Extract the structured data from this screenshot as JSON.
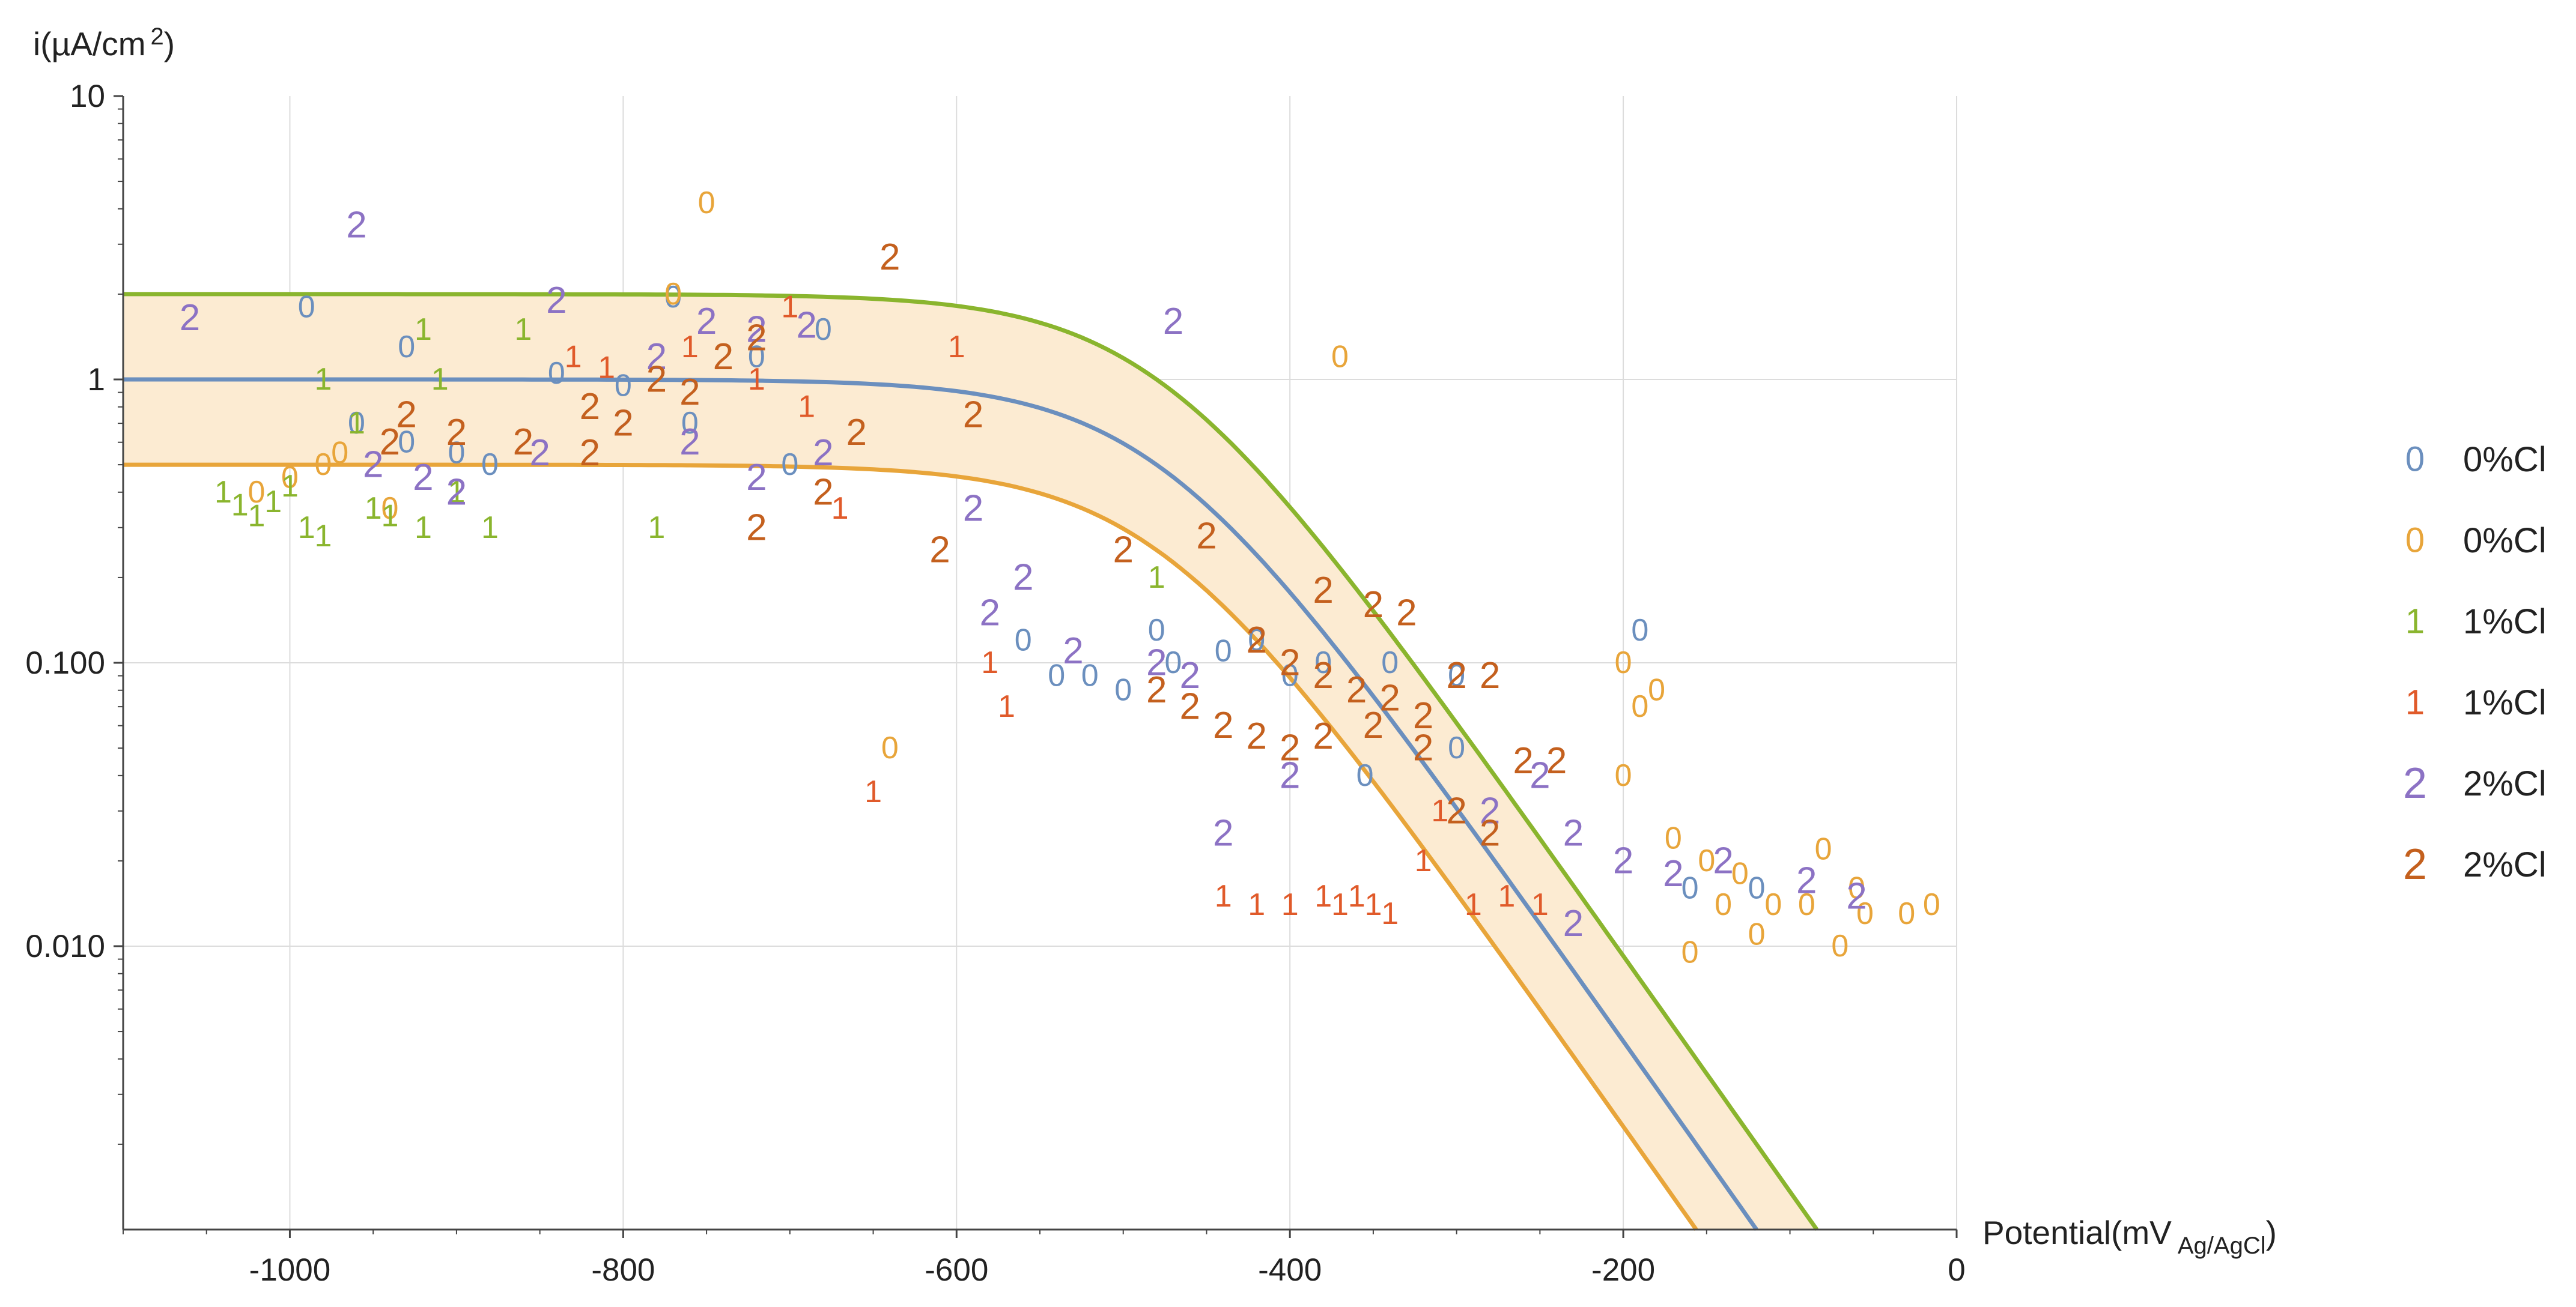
{
  "chart_data": {
    "type": "scatter",
    "title": "",
    "xlabel": "Potential(mV",
    "xlabel_subscript": "Ag/AgCl",
    "xlabel_close": ")",
    "ylabel": "i(µA/cm",
    "ylabel_superscript": "2",
    "ylabel_close": ")",
    "xlim": [
      -1100,
      0
    ],
    "ylim": [
      0.001,
      10
    ],
    "yscale": "log",
    "grid": true,
    "legend_position": "right",
    "x_ticks": [
      {
        "value": -1000,
        "label": "-1000"
      },
      {
        "value": -800,
        "label": "-800"
      },
      {
        "value": -600,
        "label": "-600"
      },
      {
        "value": -400,
        "label": "-400"
      },
      {
        "value": -200,
        "label": "-200"
      },
      {
        "value": 0,
        "label": "0"
      }
    ],
    "y_ticks": [
      {
        "value": 10,
        "label": "10"
      },
      {
        "value": 1,
        "label": "1"
      },
      {
        "value": 0.1,
        "label": "0.100"
      },
      {
        "value": 0.01,
        "label": "0.010"
      }
    ],
    "model_curves": [
      {
        "name": "upper",
        "color": "#8ab52e",
        "i0": 2,
        "breakpoint": -480
      },
      {
        "name": "middle",
        "color": "#6b8fbe",
        "i0": 1,
        "breakpoint": -480
      },
      {
        "name": "lower",
        "color": "#e8a53a",
        "i0": 0.5,
        "breakpoint": -480
      }
    ],
    "curve_decay_mV_per_decade": 120,
    "band_fill": "#fcebd2",
    "series": [
      {
        "name": "0%Cl",
        "marker": "0",
        "color": "#6b8fbe",
        "points": [
          [
            -990,
            1.8
          ],
          [
            -930,
            1.3
          ],
          [
            -840,
            1.05
          ],
          [
            -800,
            0.95
          ],
          [
            -770,
            1.95
          ],
          [
            -720,
            1.2
          ],
          [
            -680,
            1.5
          ],
          [
            -540,
            0.09
          ],
          [
            -500,
            0.08
          ],
          [
            -470,
            0.1
          ],
          [
            -440,
            0.11
          ],
          [
            -400,
            0.09
          ],
          [
            -380,
            0.1
          ],
          [
            -355,
            0.04
          ],
          [
            -300,
            0.05
          ],
          [
            -190,
            0.13
          ],
          [
            -160,
            0.016
          ],
          [
            -120,
            0.016
          ],
          [
            -960,
            0.7
          ],
          [
            -930,
            0.6
          ],
          [
            -900,
            0.55
          ],
          [
            -880,
            0.5
          ],
          [
            -760,
            0.7
          ],
          [
            -700,
            0.5
          ],
          [
            -560,
            0.12
          ],
          [
            -520,
            0.09
          ],
          [
            -480,
            0.13
          ],
          [
            -420,
            0.12
          ],
          [
            -340,
            0.1
          ],
          [
            -300,
            0.09
          ]
        ]
      },
      {
        "name": "0%Cl",
        "marker": "0",
        "color": "#e8a53a",
        "points": [
          [
            -770,
            2.0
          ],
          [
            -750,
            4.2
          ],
          [
            -370,
            1.2
          ],
          [
            -1020,
            0.4
          ],
          [
            -1000,
            0.45
          ],
          [
            -980,
            0.5
          ],
          [
            -970,
            0.55
          ],
          [
            -940,
            0.35
          ],
          [
            -640,
            0.05
          ],
          [
            -200,
            0.1
          ],
          [
            -190,
            0.07
          ],
          [
            -180,
            0.08
          ],
          [
            -170,
            0.024
          ],
          [
            -150,
            0.02
          ],
          [
            -140,
            0.014
          ],
          [
            -130,
            0.018
          ],
          [
            -120,
            0.011
          ],
          [
            -110,
            0.014
          ],
          [
            -90,
            0.014
          ],
          [
            -80,
            0.022
          ],
          [
            -70,
            0.01
          ],
          [
            -60,
            0.016
          ],
          [
            -55,
            0.013
          ],
          [
            -30,
            0.013
          ],
          [
            -15,
            0.014
          ],
          [
            -160,
            0.0095
          ],
          [
            -200,
            0.04
          ]
        ]
      },
      {
        "name": "1%Cl",
        "marker": "1",
        "color": "#8ab52e",
        "points": [
          [
            -1040,
            0.4
          ],
          [
            -1030,
            0.36
          ],
          [
            -1020,
            0.33
          ],
          [
            -1010,
            0.37
          ],
          [
            -1000,
            0.42
          ],
          [
            -990,
            0.3
          ],
          [
            -980,
            0.28
          ],
          [
            -960,
            0.7
          ],
          [
            -950,
            0.35
          ],
          [
            -940,
            0.33
          ],
          [
            -920,
            0.3
          ],
          [
            -900,
            0.4
          ],
          [
            -880,
            0.3
          ],
          [
            -780,
            0.3
          ],
          [
            -860,
            1.5
          ],
          [
            -920,
            1.5
          ],
          [
            -980,
            1.0
          ],
          [
            -910,
            1.0
          ],
          [
            -480,
            0.2
          ]
        ]
      },
      {
        "name": "1%Cl",
        "marker": "1",
        "color": "#e05a2a",
        "points": [
          [
            -700,
            1.8
          ],
          [
            -720,
            1.0
          ],
          [
            -690,
            0.8
          ],
          [
            -670,
            0.35
          ],
          [
            -600,
            1.3
          ],
          [
            -580,
            0.1
          ],
          [
            -570,
            0.07
          ],
          [
            -650,
            0.035
          ],
          [
            -440,
            0.015
          ],
          [
            -420,
            0.014
          ],
          [
            -400,
            0.014
          ],
          [
            -380,
            0.015
          ],
          [
            -370,
            0.014
          ],
          [
            -360,
            0.015
          ],
          [
            -350,
            0.014
          ],
          [
            -340,
            0.013
          ],
          [
            -320,
            0.02
          ],
          [
            -310,
            0.03
          ],
          [
            -290,
            0.014
          ],
          [
            -270,
            0.015
          ],
          [
            -250,
            0.014
          ],
          [
            -830,
            1.2
          ],
          [
            -810,
            1.1
          ],
          [
            -760,
            1.3
          ]
        ]
      },
      {
        "name": "2%Cl",
        "marker": "2",
        "color": "#8c72c4",
        "points": [
          [
            -1060,
            1.65
          ],
          [
            -960,
            3.5
          ],
          [
            -840,
            1.9
          ],
          [
            -780,
            1.2
          ],
          [
            -750,
            1.6
          ],
          [
            -720,
            1.5
          ],
          [
            -690,
            1.55
          ],
          [
            -470,
            1.6
          ],
          [
            -590,
            0.35
          ],
          [
            -560,
            0.2
          ],
          [
            -580,
            0.15
          ],
          [
            -530,
            0.11
          ],
          [
            -480,
            0.1
          ],
          [
            -460,
            0.09
          ],
          [
            -440,
            0.025
          ],
          [
            -400,
            0.04
          ],
          [
            -280,
            0.03
          ],
          [
            -250,
            0.04
          ],
          [
            -230,
            0.025
          ],
          [
            -200,
            0.02
          ],
          [
            -170,
            0.018
          ],
          [
            -140,
            0.02
          ],
          [
            -230,
            0.012
          ],
          [
            -90,
            0.017
          ],
          [
            -60,
            0.015
          ],
          [
            -950,
            0.5
          ],
          [
            -920,
            0.45
          ],
          [
            -900,
            0.4
          ],
          [
            -850,
            0.55
          ],
          [
            -800,
            0.7
          ],
          [
            -760,
            0.6
          ],
          [
            -720,
            0.45
          ],
          [
            -680,
            0.55
          ]
        ]
      },
      {
        "name": "2%Cl",
        "marker": "2",
        "color": "#c4601e",
        "points": [
          [
            -640,
            2.7
          ],
          [
            -590,
            0.75
          ],
          [
            -660,
            0.65
          ],
          [
            -680,
            0.4
          ],
          [
            -720,
            0.3
          ],
          [
            -610,
            0.25
          ],
          [
            -500,
            0.25
          ],
          [
            -450,
            0.28
          ],
          [
            -380,
            0.18
          ],
          [
            -350,
            0.16
          ],
          [
            -330,
            0.15
          ],
          [
            -420,
            0.12
          ],
          [
            -400,
            0.1
          ],
          [
            -380,
            0.09
          ],
          [
            -360,
            0.08
          ],
          [
            -340,
            0.075
          ],
          [
            -320,
            0.065
          ],
          [
            -300,
            0.09
          ],
          [
            -280,
            0.09
          ],
          [
            -480,
            0.08
          ],
          [
            -460,
            0.07
          ],
          [
            -440,
            0.06
          ],
          [
            -420,
            0.055
          ],
          [
            -400,
            0.05
          ],
          [
            -380,
            0.055
          ],
          [
            -350,
            0.06
          ],
          [
            -320,
            0.05
          ],
          [
            -300,
            0.03
          ],
          [
            -280,
            0.025
          ],
          [
            -260,
            0.045
          ],
          [
            -240,
            0.045
          ],
          [
            -900,
            0.65
          ],
          [
            -860,
            0.6
          ],
          [
            -820,
            0.8
          ],
          [
            -800,
            0.7
          ],
          [
            -780,
            1.0
          ],
          [
            -760,
            0.9
          ],
          [
            -740,
            1.2
          ],
          [
            -720,
            1.4
          ],
          [
            -930,
            0.75
          ],
          [
            -940,
            0.6
          ],
          [
            -820,
            0.55
          ]
        ]
      }
    ]
  },
  "legend": [
    {
      "marker": "0",
      "label": "0%Cl",
      "color": "#6b8fbe"
    },
    {
      "marker": "0",
      "label": "0%Cl",
      "color": "#e8a53a"
    },
    {
      "marker": "1",
      "label": "1%Cl",
      "color": "#8ab52e"
    },
    {
      "marker": "1",
      "label": "1%Cl",
      "color": "#e05a2a"
    },
    {
      "marker": "2",
      "label": "2%Cl",
      "color": "#8c72c4"
    },
    {
      "marker": "2",
      "label": "2%Cl",
      "color": "#c4601e"
    }
  ]
}
